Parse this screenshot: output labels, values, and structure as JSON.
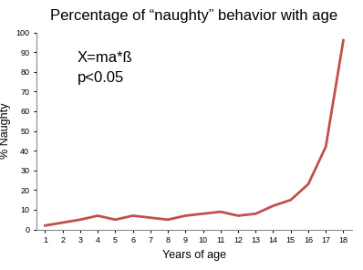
{
  "chart_data": {
    "type": "line",
    "title": "Percentage of “naughty” behavior with age",
    "x_label": "Years of age",
    "y_label": "% Naughty",
    "annotations": [
      "X=ma*ß",
      "p<0.05"
    ],
    "categories": [
      "1",
      "2",
      "3",
      "4",
      "5",
      "6",
      "7",
      "8",
      "9",
      "10",
      "11",
      "12",
      "13",
      "14",
      "15",
      "16",
      "17",
      "18"
    ],
    "values": [
      2,
      3.5,
      5,
      7,
      5,
      7,
      6,
      5,
      7,
      8,
      9,
      7,
      8,
      12,
      15,
      23,
      42,
      96
    ],
    "color": "#c0504d",
    "ylim": [
      0,
      100
    ],
    "yticks": [
      0,
      10,
      20,
      30,
      40,
      50,
      60,
      70,
      80,
      90,
      100
    ],
    "grid": false
  }
}
